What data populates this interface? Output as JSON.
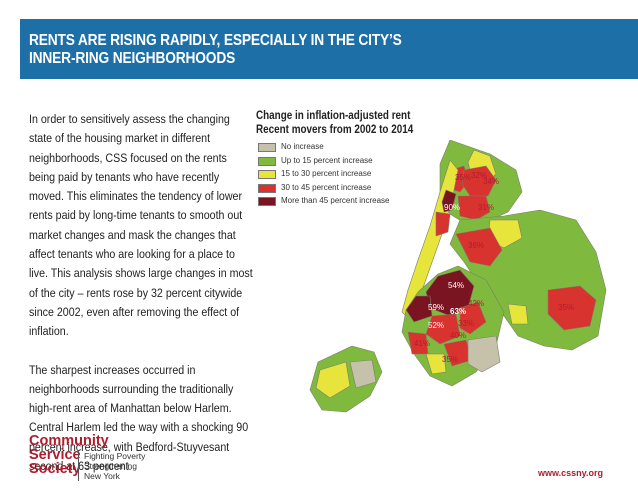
{
  "header": {
    "title_line1": "RENTS ARE RISING RAPIDLY, ESPECIALLY IN THE CITY’S",
    "title_line2": "INNER-RING NEIGHBORHOODS"
  },
  "body": {
    "paragraph1": "In order to sensitively assess the changing state of the housing market in different neighborhoods, CSS focused on the rents being paid by tenants who have recently moved. This eliminates the tendency of lower rents paid by long-time tenants to smooth out market changes and mask the changes that affect tenants who are looking for a place to live. This analysis shows large changes in most of the city – rents rose by 32 percent citywide since 2002, even after removing the effect of inflation.",
    "paragraph2": "The sharpest increases occurred in neighborhoods surrounding the traditionally high-rent area of Manhattan below Harlem. Central Harlem led the way with a shocking 90 percent increase, with Bedford-Stuyvesant second at 63 percent."
  },
  "map": {
    "title_line1": "Change in inflation-adjusted rent",
    "title_line2": "Recent movers from 2002 to 2014",
    "legend": [
      {
        "label": "No increase",
        "color": "#c6c1aa"
      },
      {
        "label": "Up to 15 percent increase",
        "color": "#7fba3f"
      },
      {
        "label": "15 to 30 percent increase",
        "color": "#e7e43c"
      },
      {
        "label": "30 to 45 percent increase",
        "color": "#d9332f"
      },
      {
        "label": "More than 45 percent increase",
        "color": "#7a1420"
      }
    ],
    "area_labels": {
      "l1": "35%",
      "l2": "32%",
      "l3": "34%",
      "l4": "90%",
      "l5": "31%",
      "l6": "36%",
      "l7": "54%",
      "l8": "59%",
      "l9": "42%",
      "l10": "63%",
      "l11": "52%",
      "l12": "33%",
      "l13": "40%",
      "l14": "41%",
      "l15": "35%",
      "l16": "35%"
    }
  },
  "footer": {
    "logo_word1": "Community",
    "logo_word2": "Service",
    "logo_word3": "Society",
    "tagline1": "Fighting Poverty",
    "tagline2": "Strengthening",
    "tagline3": "New York",
    "url": "www.cssny.org"
  }
}
